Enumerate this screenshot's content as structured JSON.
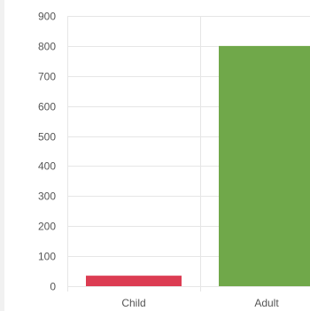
{
  "chart_data": {
    "type": "bar",
    "categories": [
      "Child",
      "Adult"
    ],
    "values": [
      35,
      800
    ],
    "colors": [
      "#dc3c52",
      "#70a84a"
    ],
    "yticks": [
      0,
      100,
      200,
      300,
      400,
      500,
      600,
      700,
      800,
      900
    ],
    "ylim": [
      0,
      900
    ],
    "grid": true,
    "title": "",
    "xlabel": "",
    "ylabel": ""
  }
}
